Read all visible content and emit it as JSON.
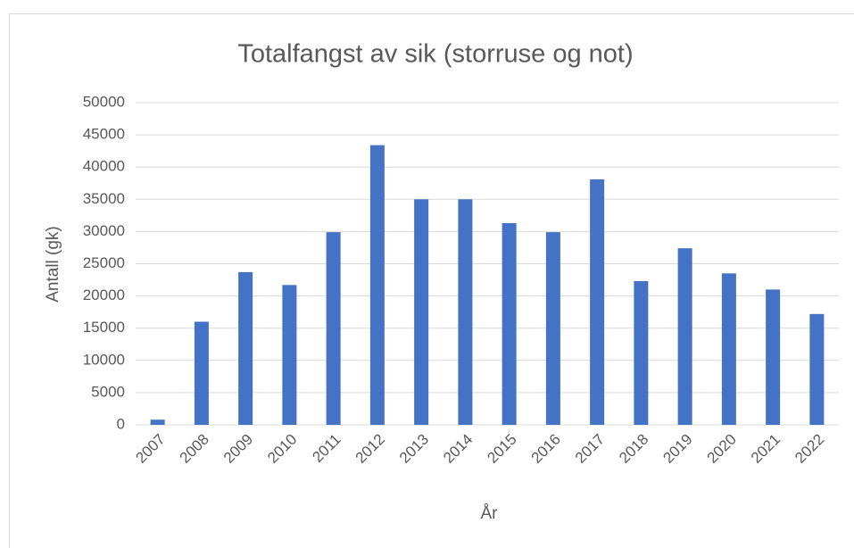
{
  "chart_data": {
    "type": "bar",
    "title": "Totalfangst av sik (storruse og not)",
    "x_label": "År",
    "y_label": "Antall (gk)",
    "categories": [
      "2007",
      "2008",
      "2009",
      "2010",
      "2011",
      "2012",
      "2013",
      "2014",
      "2015",
      "2016",
      "2017",
      "2018",
      "2019",
      "2020",
      "2021",
      "2022"
    ],
    "values": [
      800,
      16000,
      23700,
      21700,
      29900,
      43400,
      35000,
      35000,
      31300,
      29900,
      38100,
      22300,
      27400,
      23500,
      21000,
      17200
    ],
    "color": "#4472c4",
    "ylim": [
      0,
      50000
    ],
    "yticks": [
      0,
      5000,
      10000,
      15000,
      20000,
      25000,
      30000,
      35000,
      40000,
      45000,
      50000
    ],
    "grid": true
  }
}
